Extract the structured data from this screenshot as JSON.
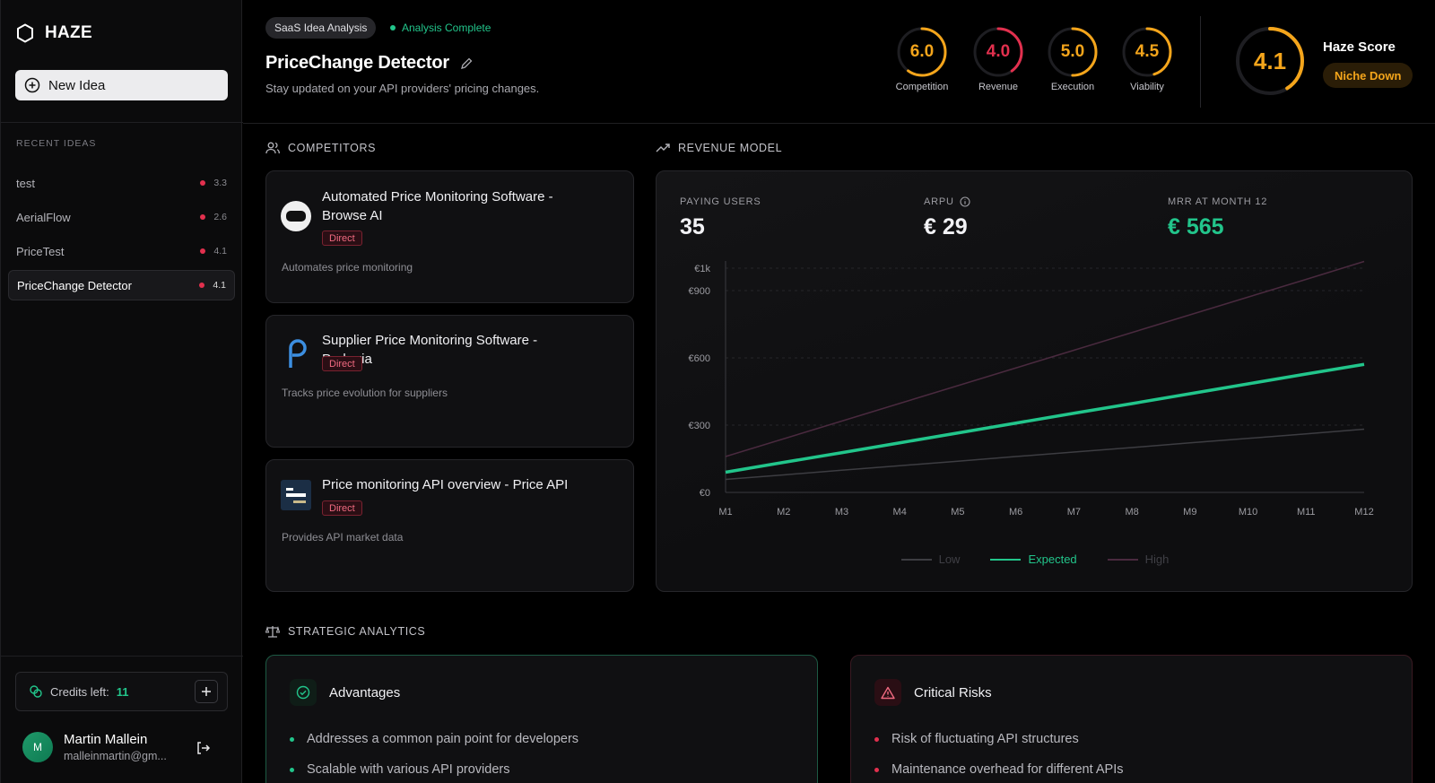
{
  "sidebar": {
    "brand": "HAZE",
    "new_idea_label": "New Idea",
    "recent_label": "RECENT IDEAS",
    "recent": [
      {
        "name": "test",
        "score": "3.3"
      },
      {
        "name": "AerialFlow",
        "score": "2.6"
      },
      {
        "name": "PriceTest",
        "score": "4.1"
      },
      {
        "name": "PriceChange Detector",
        "score": "4.1"
      }
    ],
    "credits_label": "Credits left:",
    "credits_value": "11",
    "user_initial": "M",
    "user_name": "Martin Mallein",
    "user_email": "malleinmartin@gm..."
  },
  "header": {
    "type_chip": "SaaS Idea Analysis",
    "status": "Analysis Complete",
    "title": "PriceChange Detector",
    "subtitle": "Stay updated on your API providers' pricing changes.",
    "metrics": [
      {
        "label": "Competition",
        "value": "6.0",
        "score": 6.0,
        "color": "#f4a51b"
      },
      {
        "label": "Revenue",
        "value": "4.0",
        "score": 4.0,
        "color": "#e2304e"
      },
      {
        "label": "Execution",
        "value": "5.0",
        "score": 5.0,
        "color": "#f4a51b"
      },
      {
        "label": "Viability",
        "value": "4.5",
        "score": 4.5,
        "color": "#f4a51b"
      }
    ],
    "haze_score": {
      "value": "4.1",
      "score": 4.1,
      "label": "Haze Score",
      "badge": "Niche Down",
      "color": "#f4a51b"
    }
  },
  "competitors": {
    "title": "COMPETITORS",
    "items": [
      {
        "name": "Automated Price Monitoring Software - Browse AI",
        "tag": "Direct",
        "desc": "Automates price monitoring",
        "logo": "browse-ai-logo"
      },
      {
        "name": "Supplier Price Monitoring Software - Prokuria",
        "tag": "Direct",
        "desc": "Tracks price evolution for suppliers",
        "logo": "prokuria-logo"
      },
      {
        "name": "Price monitoring API overview - Price API",
        "tag": "Direct",
        "desc": "Provides API market data",
        "logo": "price-api-logo"
      }
    ]
  },
  "revenue": {
    "title": "REVENUE MODEL",
    "paying_users_label": "PAYING USERS",
    "paying_users": "35",
    "arpu_label": "ARPU",
    "arpu": "€ 29",
    "mrr_label": "MRR AT MONTH 12",
    "mrr": "€ 565"
  },
  "chart_data": {
    "type": "line",
    "x": [
      "M1",
      "M2",
      "M3",
      "M4",
      "M5",
      "M6",
      "M7",
      "M8",
      "M9",
      "M10",
      "M11",
      "M12"
    ],
    "yticks": [
      "€0",
      "€300",
      "€600",
      "€900",
      "€1k"
    ],
    "ylim": [
      0,
      1200
    ],
    "series": [
      {
        "name": "Low",
        "color": "#3d3d42",
        "values": [
          58,
          78,
          99,
          119,
          139,
          160,
          180,
          200,
          221,
          241,
          261,
          282
        ]
      },
      {
        "name": "Expected",
        "color": "#22c58b",
        "values": [
          90,
          134,
          177,
          221,
          265,
          309,
          353,
          396,
          440,
          484,
          528,
          571
        ]
      },
      {
        "name": "High",
        "color": "#4a2a3f",
        "values": [
          160,
          239,
          318,
          397,
          476,
          555,
          634,
          713,
          792,
          871,
          950,
          1030
        ]
      }
    ],
    "legend": "bottom"
  },
  "strategic": {
    "title": "STRATEGIC ANALYTICS",
    "advantages_title": "Advantages",
    "advantages": [
      "Addresses a common pain point for developers",
      "Scalable with various API providers"
    ],
    "risks_title": "Critical Risks",
    "risks": [
      "Risk of fluctuating API structures",
      "Maintenance overhead for different APIs"
    ]
  }
}
